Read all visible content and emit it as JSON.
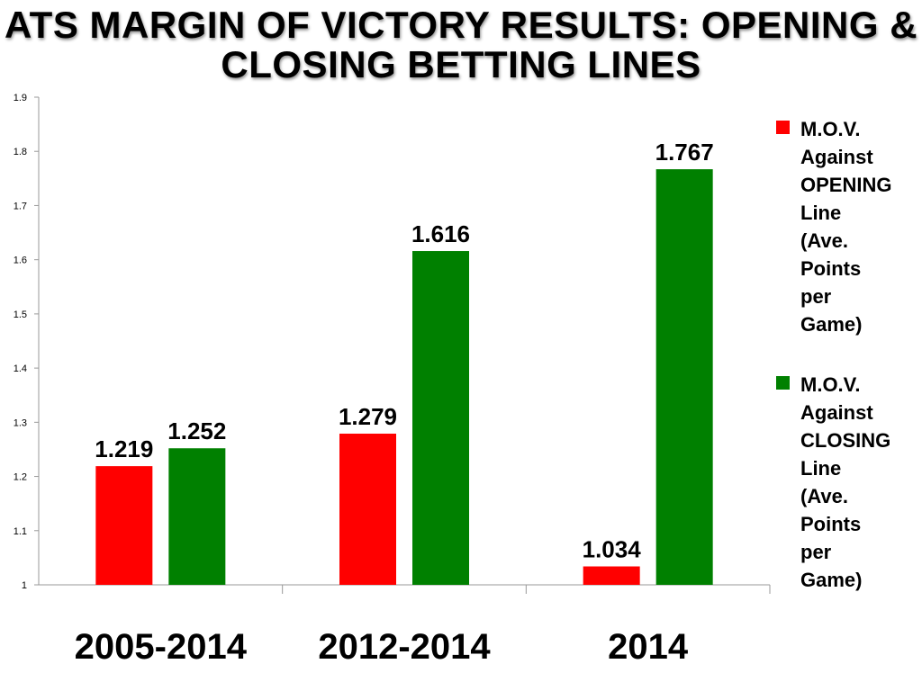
{
  "chart_data": {
    "type": "bar",
    "title": "ATS MARGIN OF VICTORY RESULTS:\nOPENING & CLOSING BETTING LINES",
    "categories": [
      "2005-2014",
      "2012-2014",
      "2014"
    ],
    "series": [
      {
        "name": "M.O.V.\nAgainst\nOPENING\nLine\n(Ave.\nPoints\nper\nGame)",
        "color": "#ff0000",
        "values": [
          1.219,
          1.279,
          1.034
        ]
      },
      {
        "name": "M.O.V.\nAgainst\nCLOSING\nLine\n(Ave.\nPoints\nper\nGame)",
        "color": "#008000",
        "values": [
          1.252,
          1.616,
          1.767
        ]
      }
    ],
    "data_labels": [
      [
        "1.219",
        "1.279",
        "1.034"
      ],
      [
        "1.252",
        "1.616",
        "1.767"
      ]
    ],
    "yticks": [
      "1",
      "1.1",
      "1.2",
      "1.3",
      "1.4",
      "1.5",
      "1.6",
      "1.7",
      "1.8",
      "1.9"
    ],
    "ylim": [
      1,
      1.9
    ],
    "grid": false,
    "legend_position": "right"
  }
}
